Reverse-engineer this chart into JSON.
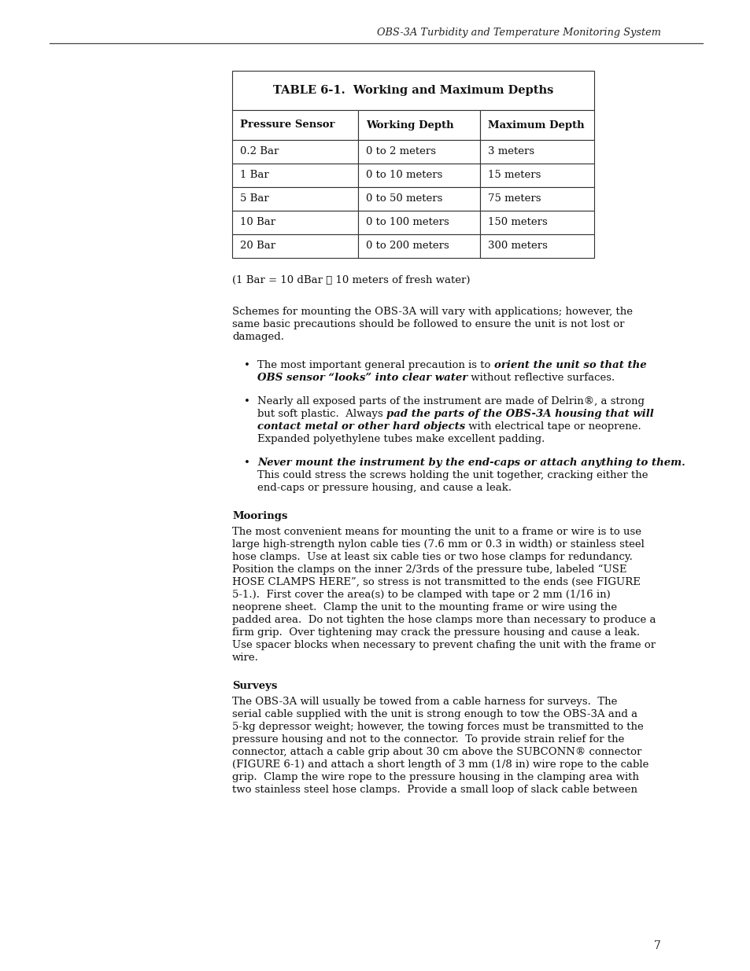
{
  "page_bg": "#ffffff",
  "header_text": "OBS-3A Turbidity and Temperature Monitoring System",
  "page_number": "7",
  "table_title": "TABLE 6-1.  Working and Maximum Depths",
  "table_headers": [
    "Pressure Sensor",
    "Working Depth",
    "Maximum Depth"
  ],
  "table_rows": [
    [
      "0.2 Bar",
      "0 to 2 meters",
      "3 meters"
    ],
    [
      "1 Bar",
      "0 to 10 meters",
      "15 meters"
    ],
    [
      "5 Bar",
      "0 to 50 meters",
      "75 meters"
    ],
    [
      "10 Bar",
      "0 to 100 meters",
      "150 meters"
    ],
    [
      "20 Bar",
      "0 to 200 meters",
      "300 meters"
    ]
  ],
  "note_text": "(1 Bar = 10 dBar ≅ 10 meters of fresh water)",
  "para1": "Schemes for mounting the OBS-3A will vary with applications; however, the\nsame basic precautions should be followed to ensure the unit is not lost or\ndamaged.",
  "bullet1_normal_start": "The most important general precaution is to ",
  "bullet1_bold_italic": "orient the unit so that the\nOBS sensor “looks” into clear water",
  "bullet1_normal_end": " without reflective surfaces.",
  "bullet2_normal_start": "Nearly all exposed parts of the instrument are made of Delrin®, a strong\nbut soft plastic.  Always ",
  "bullet2_bold_italic": "pad the parts of the OBS-3A housing that will\ncontact metal or other hard objects",
  "bullet2_normal_end": " with electrical tape or neoprene.\nExpanded polyethylene tubes make excellent padding.",
  "bullet3_bold_italic": "Never mount the instrument by the end-caps or attach anything to them.",
  "bullet3_normal_end": "\nThis could stress the screws holding the unit together, cracking either the\nend-caps or pressure housing, and cause a leak.",
  "section_moorings_title": "Moorings",
  "section_moorings_lines": [
    "The most convenient means for mounting the unit to a frame or wire is to use",
    "large high-strength nylon cable ties (7.6 mm or 0.3 in width) or stainless steel",
    "hose clamps.  Use at least six cable ties or two hose clamps for redundancy.",
    "Position the clamps on the inner 2/3rds of the pressure tube, labeled “USE",
    "HOSE CLAMPS HERE”, so stress is not transmitted to the ends (see FIGURE",
    "5-1.).  First cover the area(s) to be clamped with tape or 2 mm (1/16 in)",
    "neoprene sheet.  Clamp the unit to the mounting frame or wire using the",
    "padded area.  Do not tighten the hose clamps more than necessary to produce a",
    "firm grip.  Over tightening may crack the pressure housing and cause a leak.",
    "Use spacer blocks when necessary to prevent chafing the unit with the frame or",
    "wire."
  ],
  "section_surveys_title": "Surveys",
  "section_surveys_lines": [
    "The OBS-3A will usually be towed from a cable harness for surveys.  The",
    "serial cable supplied with the unit is strong enough to tow the OBS-3A and a",
    "5-kg depressor weight; however, the towing forces must be transmitted to the",
    "pressure housing and not to the connector.  To provide strain relief for the",
    "connector, attach a cable grip about 30 cm above the SUBCONN® connector",
    "(FIGURE 6-1) and attach a short length of 3 mm (1/8 in) wire rope to the cable",
    "grip.  Clamp the wire rope to the pressure housing in the clamping area with",
    "two stainless steel hose clamps.  Provide a small loop of slack cable between"
  ]
}
